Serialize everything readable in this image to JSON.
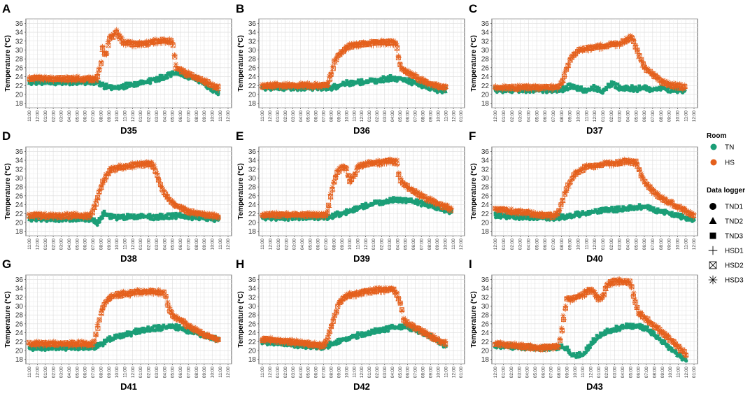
{
  "ylabel": "Temperature (°C)",
  "yticks": [
    18,
    20,
    22,
    24,
    26,
    28,
    30,
    32,
    34,
    36
  ],
  "xtick_sets": {
    "a": [
      "11:00",
      "12:00",
      "01:00",
      "02:00",
      "03:00",
      "04:00",
      "05:00",
      "06:00",
      "07:00",
      "08:00",
      "09:00",
      "10:00",
      "11:00",
      "12:00",
      "01:00",
      "02:00",
      "03:00",
      "04:00",
      "05:00",
      "06:00",
      "07:00",
      "08:00",
      "09:00",
      "10:00",
      "11:00",
      "12:00"
    ],
    "b": [
      "11:00",
      "12:00",
      "01:00",
      "02:00",
      "03:00",
      "04:00",
      "05:00",
      "06:00",
      "07:00",
      "08:00",
      "09:00",
      "10:00",
      "11:00",
      "12:00",
      "01:00",
      "02:00",
      "03:00",
      "04:00",
      "05:00",
      "06:00",
      "07:00",
      "08:00",
      "09:00",
      "10:00",
      "11:00",
      "12:00",
      "01:00"
    ],
    "c": [
      "12:00",
      "01:00",
      "02:00",
      "03:00",
      "04:00",
      "05:00",
      "06:00",
      "07:00",
      "08:00",
      "09:00",
      "10:00",
      "11:00",
      "12:00",
      "01:00",
      "02:00",
      "03:00",
      "04:00",
      "05:00",
      "06:00",
      "07:00",
      "08:00",
      "09:00",
      "10:00",
      "11:00",
      "12:00"
    ],
    "d": [
      "12:00",
      "01:00",
      "02:00",
      "03:00",
      "04:00",
      "05:00",
      "06:00",
      "07:00",
      "08:00",
      "09:00",
      "10:00",
      "11:00",
      "12:00",
      "01:00",
      "02:00",
      "03:00",
      "04:00",
      "05:00",
      "06:00",
      "07:00",
      "08:00",
      "09:00",
      "10:00",
      "11:00",
      "12:00",
      "01:00"
    ]
  },
  "legend": {
    "room_title": "Room",
    "rooms": [
      {
        "name": "TN",
        "color": "#1b9e77"
      },
      {
        "name": "HS",
        "color": "#e4601d"
      }
    ],
    "logger_title": "Data logger",
    "loggers": [
      {
        "name": "TND1",
        "shape": "circle"
      },
      {
        "name": "TND2",
        "shape": "triangle"
      },
      {
        "name": "TND3",
        "shape": "square"
      },
      {
        "name": "HSD1",
        "shape": "plus"
      },
      {
        "name": "HSD2",
        "shape": "boxed-x"
      },
      {
        "name": "HSD3",
        "shape": "asterisk"
      }
    ]
  },
  "chart_data": [
    {
      "letter": "A",
      "title": "D35",
      "type": "scatter",
      "ylim": [
        17,
        37
      ],
      "xticks": "a",
      "series": [
        {
          "name": "TN",
          "x": [
            0,
            8.5,
            9.5,
            11,
            13,
            15,
            17,
            18,
            19,
            20,
            21,
            22,
            23,
            23.8
          ],
          "y": [
            22.8,
            22.8,
            21.8,
            21.5,
            22.3,
            23,
            24,
            24.7,
            24.6,
            24,
            23.5,
            22.5,
            21,
            20.2
          ]
        },
        {
          "name": "HS",
          "x": [
            0,
            8.5,
            9,
            9.3,
            9.6,
            10,
            10.5,
            11,
            11.5,
            12,
            14,
            16,
            17,
            18,
            18.5,
            19,
            20,
            21,
            22,
            23,
            23.8
          ],
          "y": [
            23.6,
            23.4,
            27,
            31,
            28,
            32.5,
            33,
            34,
            32.5,
            31.5,
            31.2,
            32,
            32.1,
            31.8,
            26,
            25.5,
            24.5,
            23.8,
            23,
            22,
            21.4
          ]
        }
      ]
    },
    {
      "letter": "B",
      "title": "D36",
      "type": "scatter",
      "ylim": [
        17,
        37
      ],
      "xticks": "b",
      "series": [
        {
          "name": "TN",
          "x": [
            0,
            9,
            11,
            13,
            15,
            17,
            18,
            19,
            20,
            21,
            22,
            23,
            24
          ],
          "y": [
            21.5,
            21.5,
            22.5,
            22.8,
            23.2,
            23.7,
            23.5,
            23,
            22.5,
            22,
            21.5,
            21,
            20.8
          ]
        },
        {
          "name": "HS",
          "x": [
            0,
            8.5,
            9,
            9.5,
            10,
            10.5,
            11,
            12,
            14,
            16,
            17,
            17.5,
            18,
            18.5,
            19,
            20,
            21,
            22,
            23,
            24
          ],
          "y": [
            22,
            22,
            24.5,
            27.5,
            29,
            29.5,
            30.5,
            31.2,
            31.5,
            31.7,
            31.7,
            31.5,
            26.5,
            25.5,
            25,
            24,
            23,
            22.3,
            21.8,
            21.4
          ]
        }
      ]
    },
    {
      "letter": "C",
      "title": "D37",
      "type": "scatter",
      "ylim": [
        17,
        37
      ],
      "xticks": "c",
      "series": [
        {
          "name": "TN",
          "x": [
            0,
            8,
            9,
            10,
            11,
            12,
            13,
            14,
            15,
            16,
            17,
            18,
            19,
            20,
            21,
            22,
            23
          ],
          "y": [
            21,
            21,
            21.8,
            21.2,
            21,
            21.5,
            20.5,
            22.5,
            21.5,
            21.5,
            21.2,
            21.5,
            21,
            21.5,
            21,
            21,
            20.8
          ]
        },
        {
          "name": "HS",
          "x": [
            0,
            7.5,
            8,
            8.5,
            9,
            9.5,
            10,
            11,
            13,
            15,
            16,
            16.5,
            17,
            17.5,
            18,
            19,
            20,
            21,
            22,
            23
          ],
          "y": [
            21.5,
            21.5,
            22.5,
            25,
            27.5,
            29,
            29.8,
            30.3,
            30.8,
            31.5,
            32.5,
            33,
            30.5,
            28,
            26,
            24.5,
            23,
            22.2,
            21.8,
            21.5
          ]
        }
      ]
    },
    {
      "letter": "D",
      "title": "D38",
      "type": "scatter",
      "ylim": [
        17,
        37
      ],
      "xticks": "a",
      "series": [
        {
          "name": "TN",
          "x": [
            0,
            8,
            8.5,
            9,
            9.5,
            10,
            11,
            12,
            14,
            16,
            18,
            20,
            22,
            23.8
          ],
          "y": [
            20.8,
            20.8,
            19.8,
            21,
            22.2,
            21.5,
            21.2,
            21.2,
            21.4,
            21.2,
            21.5,
            21.3,
            21,
            20.7
          ]
        },
        {
          "name": "HS",
          "x": [
            0,
            7.5,
            8,
            8.5,
            9,
            9.5,
            10,
            11,
            13,
            15,
            15.5,
            16,
            16.5,
            17,
            18,
            19,
            20,
            21,
            22,
            23,
            23.8
          ],
          "y": [
            21.5,
            21.5,
            22.5,
            25,
            28,
            30,
            31.5,
            32.3,
            32.8,
            33.2,
            33,
            31,
            28.5,
            26.5,
            24.5,
            23.2,
            22.5,
            22,
            21.8,
            21.5,
            21.4
          ]
        }
      ]
    },
    {
      "letter": "E",
      "title": "D39",
      "type": "scatter",
      "ylim": [
        17,
        37
      ],
      "xticks": "a",
      "series": [
        {
          "name": "TN",
          "x": [
            0,
            8,
            10,
            12,
            14,
            16,
            17,
            18,
            19,
            20,
            21,
            22,
            23,
            23.8
          ],
          "y": [
            21,
            21.2,
            22,
            23.2,
            24.2,
            25,
            25.2,
            25,
            24.7,
            24.3,
            23.8,
            23.3,
            22.8,
            22.3
          ]
        },
        {
          "name": "HS",
          "x": [
            0,
            8,
            8.3,
            8.6,
            9,
            9.5,
            10,
            10.5,
            11,
            11.5,
            12,
            13,
            15,
            16,
            17,
            17.2,
            17.5,
            18,
            19,
            20,
            21,
            22,
            23,
            23.8
          ],
          "y": [
            21.7,
            21.7,
            23,
            26,
            29,
            31.5,
            32.5,
            32.3,
            29,
            30.5,
            32.5,
            33.2,
            33.5,
            33.8,
            33.5,
            30,
            29,
            28.3,
            27,
            26,
            25,
            24.2,
            23.5,
            23
          ]
        }
      ]
    },
    {
      "letter": "F",
      "title": "D40",
      "type": "scatter",
      "ylim": [
        17,
        37
      ],
      "xticks": "c",
      "series": [
        {
          "name": "TN",
          "x": [
            0,
            3,
            6,
            8,
            10,
            12,
            14,
            16,
            17,
            18,
            19,
            20,
            21,
            22,
            23,
            24
          ],
          "y": [
            21.5,
            21.2,
            21,
            21.2,
            21.8,
            22.5,
            22.8,
            23.2,
            23.5,
            23.5,
            23,
            22.5,
            22,
            21.5,
            21,
            20.5
          ]
        },
        {
          "name": "HS",
          "x": [
            0,
            2,
            5,
            7,
            7.5,
            8,
            8.5,
            9,
            9.5,
            10,
            11,
            13,
            15,
            16,
            17,
            17.5,
            18,
            18.5,
            19,
            20,
            21,
            22,
            23,
            24
          ],
          "y": [
            23,
            22.5,
            21.8,
            21.5,
            22,
            24,
            27,
            29,
            30.5,
            31.5,
            32.5,
            33,
            33.5,
            33.8,
            33.5,
            31,
            29,
            28,
            27,
            25.5,
            24.5,
            23.5,
            22.5,
            21.5
          ]
        }
      ]
    },
    {
      "letter": "G",
      "title": "D41",
      "type": "scatter",
      "ylim": [
        17,
        37
      ],
      "xticks": "a",
      "series": [
        {
          "name": "TN",
          "x": [
            0,
            8,
            9,
            10,
            12,
            14,
            16,
            18,
            19,
            20,
            21,
            22,
            23,
            23.8
          ],
          "y": [
            20.5,
            20.8,
            21.3,
            22.5,
            23.5,
            24.5,
            25,
            25.5,
            25,
            24.5,
            24,
            23.3,
            22.8,
            22.3
          ]
        },
        {
          "name": "HS",
          "x": [
            0,
            8,
            8.3,
            8.6,
            9,
            9.5,
            10,
            11,
            13,
            15,
            16,
            17,
            17.5,
            18,
            19,
            20,
            21,
            22,
            23,
            23.8
          ],
          "y": [
            21.5,
            21.5,
            23,
            25.5,
            28.5,
            30.5,
            31.8,
            32.5,
            33,
            33.2,
            33.2,
            33,
            29.5,
            28,
            26.8,
            25.5,
            24.5,
            23.5,
            22.8,
            22.3
          ]
        }
      ]
    },
    {
      "letter": "H",
      "title": "D42",
      "type": "scatter",
      "ylim": [
        17,
        37
      ],
      "xticks": "b",
      "series": [
        {
          "name": "TN",
          "x": [
            0,
            3,
            6,
            8,
            10,
            12,
            14,
            16,
            18,
            19,
            20,
            21,
            22,
            23,
            24
          ],
          "y": [
            22,
            21.5,
            21,
            20.8,
            22,
            23.2,
            24,
            24.8,
            25.4,
            25.3,
            24.8,
            24,
            23,
            22,
            21
          ]
        },
        {
          "name": "HS",
          "x": [
            0,
            3,
            6,
            8,
            8.5,
            9,
            9.5,
            10,
            11,
            13,
            15,
            17,
            17.5,
            18,
            18.5,
            19,
            20,
            21,
            22,
            23,
            24
          ],
          "y": [
            22.5,
            22,
            21.5,
            21,
            22.5,
            25,
            28,
            30.5,
            32.3,
            33,
            33.5,
            33.8,
            32.8,
            31,
            27,
            26,
            25,
            24.2,
            23.2,
            22.3,
            21.5
          ]
        }
      ]
    },
    {
      "letter": "I",
      "title": "D43",
      "type": "scatter",
      "ylim": [
        17,
        37
      ],
      "xticks": "d",
      "series": [
        {
          "name": "TN",
          "x": [
            0,
            3,
            6,
            8,
            9,
            9.5,
            10,
            11,
            12,
            13,
            14,
            15,
            16,
            17,
            18,
            19,
            20,
            21,
            22,
            23,
            24
          ],
          "y": [
            21,
            20.8,
            20.5,
            20.8,
            20.5,
            19,
            18.8,
            19,
            21.5,
            23.2,
            24.2,
            24.8,
            25.3,
            25.5,
            25.4,
            25,
            23.5,
            22,
            20.5,
            19,
            18
          ]
        },
        {
          "name": "HS",
          "x": [
            0,
            3,
            6,
            8,
            8.3,
            8.6,
            9,
            9.5,
            10,
            11,
            12,
            12.5,
            13,
            13.5,
            14,
            14.5,
            15,
            16,
            17,
            17.5,
            18,
            19,
            20,
            21,
            22,
            23,
            24
          ],
          "y": [
            21.5,
            21,
            20.5,
            21,
            24,
            27.5,
            31.5,
            31.5,
            31.8,
            32.5,
            33.8,
            33,
            31.5,
            32,
            34.5,
            35.2,
            35.5,
            35.5,
            35.3,
            31.5,
            28.5,
            27,
            25.5,
            24,
            22.5,
            20.8,
            19
          ]
        }
      ]
    }
  ]
}
